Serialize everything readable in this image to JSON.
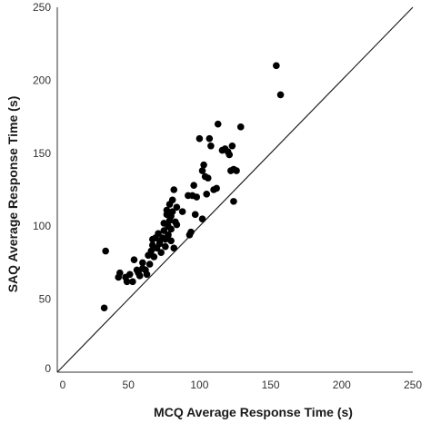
{
  "chart_data": {
    "type": "scatter",
    "title": "",
    "xlabel": "MCQ Average Response Time (s)",
    "ylabel": "SAQ Average Response Time (s)",
    "xlim": [
      0,
      250
    ],
    "ylim": [
      0,
      250
    ],
    "xticks": [
      "0",
      "50",
      "100",
      "150",
      "200",
      "250"
    ],
    "yticks": [
      "0",
      "50",
      "100",
      "150",
      "200",
      "250"
    ],
    "grid": false,
    "reference_line": "y = x",
    "point_color": "#000000",
    "points": [
      [
        33,
        44
      ],
      [
        34,
        83
      ],
      [
        43,
        65
      ],
      [
        44,
        68
      ],
      [
        48,
        65
      ],
      [
        49,
        62
      ],
      [
        51,
        67
      ],
      [
        53,
        62
      ],
      [
        54,
        77
      ],
      [
        56,
        70
      ],
      [
        57,
        68
      ],
      [
        58,
        66
      ],
      [
        60,
        71
      ],
      [
        60,
        75
      ],
      [
        62,
        70
      ],
      [
        63,
        67
      ],
      [
        64,
        80
      ],
      [
        65,
        74
      ],
      [
        66,
        83
      ],
      [
        67,
        87
      ],
      [
        67,
        91
      ],
      [
        68,
        79
      ],
      [
        69,
        92
      ],
      [
        70,
        85
      ],
      [
        71,
        95
      ],
      [
        72,
        88
      ],
      [
        72,
        90
      ],
      [
        73,
        82
      ],
      [
        74,
        92
      ],
      [
        75,
        97
      ],
      [
        75,
        102
      ],
      [
        76,
        86
      ],
      [
        76,
        91
      ],
      [
        77,
        108
      ],
      [
        77,
        111
      ],
      [
        78,
        94
      ],
      [
        78,
        100
      ],
      [
        79,
        104
      ],
      [
        79,
        115
      ],
      [
        80,
        90
      ],
      [
        80,
        98
      ],
      [
        80,
        107
      ],
      [
        81,
        110
      ],
      [
        81,
        118
      ],
      [
        82,
        125
      ],
      [
        82,
        85
      ],
      [
        83,
        103
      ],
      [
        84,
        101
      ],
      [
        84,
        113
      ],
      [
        88,
        110
      ],
      [
        92,
        121
      ],
      [
        93,
        94
      ],
      [
        94,
        96
      ],
      [
        95,
        121
      ],
      [
        96,
        128
      ],
      [
        97,
        108
      ],
      [
        98,
        120
      ],
      [
        100,
        160
      ],
      [
        102,
        105
      ],
      [
        102,
        138
      ],
      [
        103,
        142
      ],
      [
        104,
        134
      ],
      [
        105,
        122
      ],
      [
        106,
        133
      ],
      [
        107,
        160
      ],
      [
        108,
        155
      ],
      [
        110,
        125
      ],
      [
        112,
        126
      ],
      [
        113,
        170
      ],
      [
        116,
        152
      ],
      [
        118,
        153
      ],
      [
        120,
        151
      ],
      [
        121,
        149
      ],
      [
        122,
        138
      ],
      [
        123,
        155
      ],
      [
        124,
        139
      ],
      [
        124,
        117
      ],
      [
        126,
        138
      ],
      [
        129,
        168
      ],
      [
        154,
        210
      ],
      [
        157,
        190
      ]
    ]
  }
}
